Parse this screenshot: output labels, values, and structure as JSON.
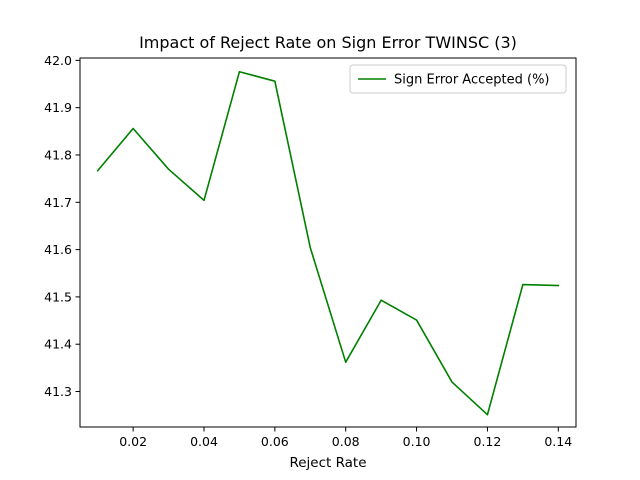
{
  "chart_data": {
    "type": "line",
    "title": "Impact of Reject Rate on Sign Error TWINSC (3)",
    "xlabel": "Reject Rate",
    "ylabel": "",
    "xlim": [
      0.005,
      0.145
    ],
    "ylim": [
      41.225,
      42.005
    ],
    "x_ticks": [
      0.02,
      0.04,
      0.06,
      0.08,
      0.1,
      0.12,
      0.14
    ],
    "x_tick_labels": [
      "0.02",
      "0.04",
      "0.06",
      "0.08",
      "0.10",
      "0.12",
      "0.14"
    ],
    "y_ticks": [
      41.3,
      41.4,
      41.5,
      41.6,
      41.7,
      41.8,
      41.9,
      42.0
    ],
    "y_tick_labels": [
      "41.3",
      "41.4",
      "41.5",
      "41.6",
      "41.7",
      "41.8",
      "41.9",
      "42.0"
    ],
    "grid": false,
    "legend_position": "top-right",
    "series": [
      {
        "name": "Sign Error Accepted (%)",
        "color": "#008000",
        "x": [
          0.01,
          0.02,
          0.03,
          0.04,
          0.05,
          0.06,
          0.07,
          0.08,
          0.09,
          0.1,
          0.11,
          0.12,
          0.13,
          0.14
        ],
        "y": [
          41.767,
          41.856,
          41.77,
          41.704,
          41.976,
          41.956,
          41.604,
          41.362,
          41.493,
          41.451,
          41.32,
          41.251,
          41.526,
          41.524
        ]
      }
    ]
  }
}
